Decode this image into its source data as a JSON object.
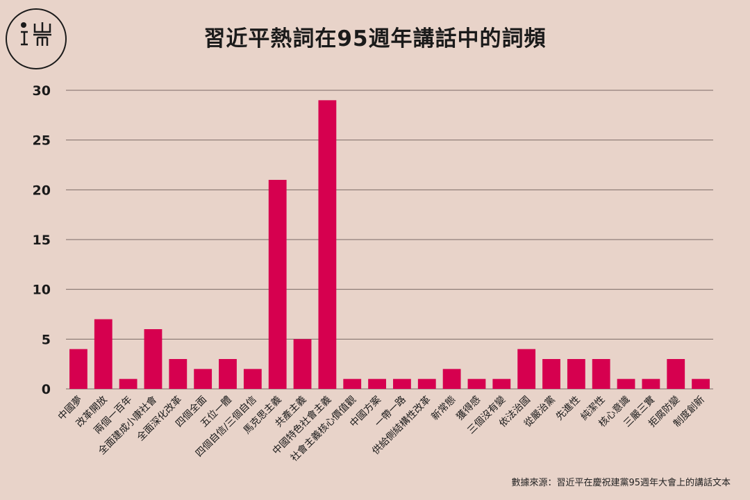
{
  "title": "習近平熱詞在95週年講話中的詞頻",
  "source": "數據來源：習近平在慶祝建黨95週年大會上的講話文本",
  "logo": {
    "icon": "端-logo-icon",
    "text": "端"
  },
  "colors": {
    "bar": "#d6004f",
    "grid": "#7a6a66",
    "background": "#e8d3c9",
    "text": "#1a1a1a"
  },
  "chart_data": {
    "type": "bar",
    "title": "習近平熱詞在95週年講話中的詞頻",
    "xlabel": "",
    "ylabel": "",
    "ylim": [
      0,
      30
    ],
    "yticks": [
      0,
      5,
      10,
      15,
      20,
      25,
      30
    ],
    "grid": true,
    "categories": [
      "中國夢",
      "改革開放",
      "兩個一百年",
      "全面建成小康社會",
      "全面深化改革",
      "四個全面",
      "五位一體",
      "四個自信/三個自信",
      "馬克思主義",
      "共產主義",
      "中國特色社會主義",
      "社會主義核心價值觀",
      "中國方案",
      "一帶一路",
      "供給側結構性改革",
      "新常態",
      "獲得感",
      "三個沒有變",
      "依法治國",
      "從嚴治黨",
      "先進性",
      "純潔性",
      "核心意識",
      "三嚴三實",
      "拒腐防變",
      "制度創新"
    ],
    "values": [
      4,
      7,
      1,
      6,
      3,
      2,
      3,
      2,
      21,
      5,
      29,
      1,
      1,
      1,
      1,
      2,
      1,
      1,
      4,
      3,
      3,
      3,
      1,
      1,
      3,
      1
    ]
  }
}
